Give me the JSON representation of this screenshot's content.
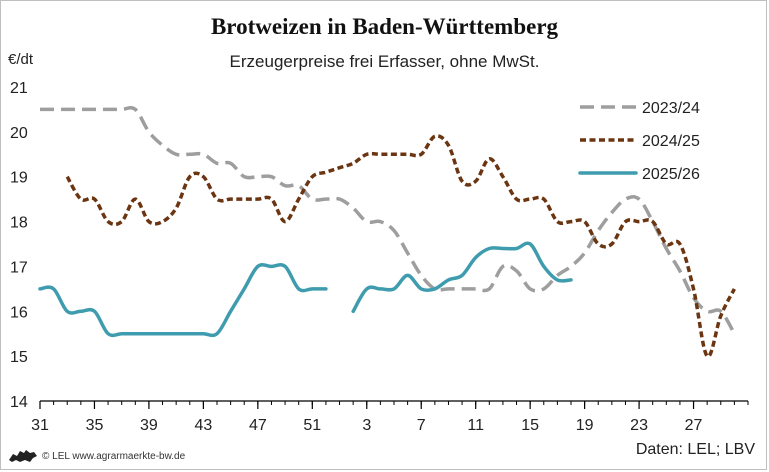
{
  "header": {
    "title": "Brotweizen in Baden-Württemberg",
    "subtitle": "Erzeugerpreise frei Erfasser, ohne MwSt.",
    "unit": "€/dt"
  },
  "footer": {
    "credit": "© LEL www.agrarmaerkte-bw.de",
    "source": "Daten: LEL; LBV"
  },
  "colors": {
    "s2023": "#9e9e9e",
    "s2024": "#6b3512",
    "s2025": "#3e9cae",
    "axis": "#000000",
    "logo": "#222222"
  },
  "chart_data": {
    "type": "line",
    "xlabel": "",
    "ylabel": "€/dt",
    "ylim": [
      14,
      21
    ],
    "yticks": [
      14,
      15,
      16,
      17,
      18,
      19,
      20,
      21
    ],
    "x_domain": [
      1,
      53
    ],
    "xticks": [
      {
        "pos": 1,
        "label": "31"
      },
      {
        "pos": 5,
        "label": "35"
      },
      {
        "pos": 9,
        "label": "39"
      },
      {
        "pos": 13,
        "label": "43"
      },
      {
        "pos": 17,
        "label": "47"
      },
      {
        "pos": 21,
        "label": "51"
      },
      {
        "pos": 25,
        "label": "3"
      },
      {
        "pos": 29,
        "label": "7"
      },
      {
        "pos": 33,
        "label": "11"
      },
      {
        "pos": 37,
        "label": "15"
      },
      {
        "pos": 41,
        "label": "19"
      },
      {
        "pos": 45,
        "label": "23"
      },
      {
        "pos": 49,
        "label": "27"
      }
    ],
    "legend_position": "top-right",
    "grid": false,
    "series": [
      {
        "name": "2023/24",
        "dash": "dashed",
        "points": [
          [
            1,
            20.5
          ],
          [
            2,
            20.5
          ],
          [
            3,
            20.5
          ],
          [
            4,
            20.5
          ],
          [
            5,
            20.5
          ],
          [
            6,
            20.5
          ],
          [
            7,
            20.5
          ],
          [
            8,
            20.5
          ],
          [
            9,
            20.0
          ],
          [
            10,
            19.7
          ],
          [
            11,
            19.5
          ],
          [
            12,
            19.5
          ],
          [
            13,
            19.5
          ],
          [
            14,
            19.3
          ],
          [
            15,
            19.3
          ],
          [
            16,
            19.0
          ],
          [
            17,
            19.0
          ],
          [
            18,
            19.0
          ],
          [
            19,
            18.8
          ],
          [
            20,
            18.8
          ],
          [
            21,
            18.5
          ],
          [
            22,
            18.5
          ],
          [
            23,
            18.5
          ],
          [
            24,
            18.3
          ],
          [
            25,
            18.0
          ],
          [
            26,
            18.0
          ],
          [
            27,
            17.8
          ],
          [
            28,
            17.3
          ],
          [
            29,
            16.8
          ],
          [
            30,
            16.5
          ],
          [
            31,
            16.5
          ],
          [
            32,
            16.5
          ],
          [
            33,
            16.5
          ],
          [
            34,
            16.5
          ],
          [
            35,
            17.0
          ],
          [
            36,
            16.9
          ],
          [
            37,
            16.5
          ],
          [
            38,
            16.5
          ],
          [
            39,
            16.8
          ],
          [
            40,
            17.0
          ],
          [
            41,
            17.3
          ],
          [
            42,
            17.8
          ],
          [
            43,
            18.2
          ],
          [
            44,
            18.5
          ],
          [
            45,
            18.5
          ],
          [
            46,
            18.0
          ],
          [
            47,
            17.4
          ],
          [
            48,
            16.9
          ],
          [
            49,
            16.3
          ],
          [
            50,
            16.0
          ],
          [
            51,
            16.0
          ],
          [
            52,
            15.5
          ]
        ]
      },
      {
        "name": "2024/25",
        "dash": "dotted",
        "points": [
          [
            3,
            19.0
          ],
          [
            4,
            18.5
          ],
          [
            5,
            18.5
          ],
          [
            6,
            18.0
          ],
          [
            7,
            18.0
          ],
          [
            8,
            18.5
          ],
          [
            9,
            18.0
          ],
          [
            10,
            18.0
          ],
          [
            11,
            18.3
          ],
          [
            12,
            19.0
          ],
          [
            13,
            19.0
          ],
          [
            14,
            18.5
          ],
          [
            15,
            18.5
          ],
          [
            16,
            18.5
          ],
          [
            17,
            18.5
          ],
          [
            18,
            18.5
          ],
          [
            19,
            18.0
          ],
          [
            20,
            18.5
          ],
          [
            21,
            19.0
          ],
          [
            22,
            19.1
          ],
          [
            23,
            19.2
          ],
          [
            24,
            19.3
          ],
          [
            25,
            19.5
          ],
          [
            26,
            19.5
          ],
          [
            27,
            19.5
          ],
          [
            28,
            19.5
          ],
          [
            29,
            19.5
          ],
          [
            30,
            19.9
          ],
          [
            31,
            19.7
          ],
          [
            32,
            18.9
          ],
          [
            33,
            18.9
          ],
          [
            34,
            19.4
          ],
          [
            35,
            19.0
          ],
          [
            36,
            18.5
          ],
          [
            37,
            18.5
          ],
          [
            38,
            18.5
          ],
          [
            39,
            18.0
          ],
          [
            40,
            18.0
          ],
          [
            41,
            18.0
          ],
          [
            42,
            17.5
          ],
          [
            43,
            17.5
          ],
          [
            44,
            18.0
          ],
          [
            45,
            18.0
          ],
          [
            46,
            18.0
          ],
          [
            47,
            17.5
          ],
          [
            48,
            17.5
          ],
          [
            49,
            16.5
          ],
          [
            50,
            15.0
          ],
          [
            51,
            15.9
          ],
          [
            52,
            16.5
          ]
        ]
      },
      {
        "name": "2025/26",
        "dash": "solid",
        "segments": [
          [
            [
              1,
              16.5
            ],
            [
              2,
              16.5
            ],
            [
              3,
              16.0
            ],
            [
              4,
              16.0
            ],
            [
              5,
              16.0
            ],
            [
              6,
              15.5
            ],
            [
              7,
              15.5
            ],
            [
              8,
              15.5
            ],
            [
              9,
              15.5
            ],
            [
              10,
              15.5
            ],
            [
              11,
              15.5
            ],
            [
              12,
              15.5
            ],
            [
              13,
              15.5
            ],
            [
              14,
              15.5
            ],
            [
              15,
              16.0
            ],
            [
              16,
              16.5
            ],
            [
              17,
              17.0
            ],
            [
              18,
              17.0
            ],
            [
              19,
              17.0
            ],
            [
              20,
              16.5
            ],
            [
              21,
              16.5
            ],
            [
              22,
              16.5
            ]
          ],
          [
            [
              24,
              16.0
            ],
            [
              25,
              16.5
            ],
            [
              26,
              16.5
            ],
            [
              27,
              16.5
            ],
            [
              28,
              16.8
            ],
            [
              29,
              16.5
            ],
            [
              30,
              16.5
            ],
            [
              31,
              16.7
            ],
            [
              32,
              16.8
            ],
            [
              33,
              17.2
            ],
            [
              34,
              17.4
            ],
            [
              35,
              17.4
            ],
            [
              36,
              17.4
            ],
            [
              37,
              17.5
            ],
            [
              38,
              17.0
            ],
            [
              39,
              16.7
            ],
            [
              40,
              16.7
            ]
          ]
        ]
      }
    ]
  }
}
